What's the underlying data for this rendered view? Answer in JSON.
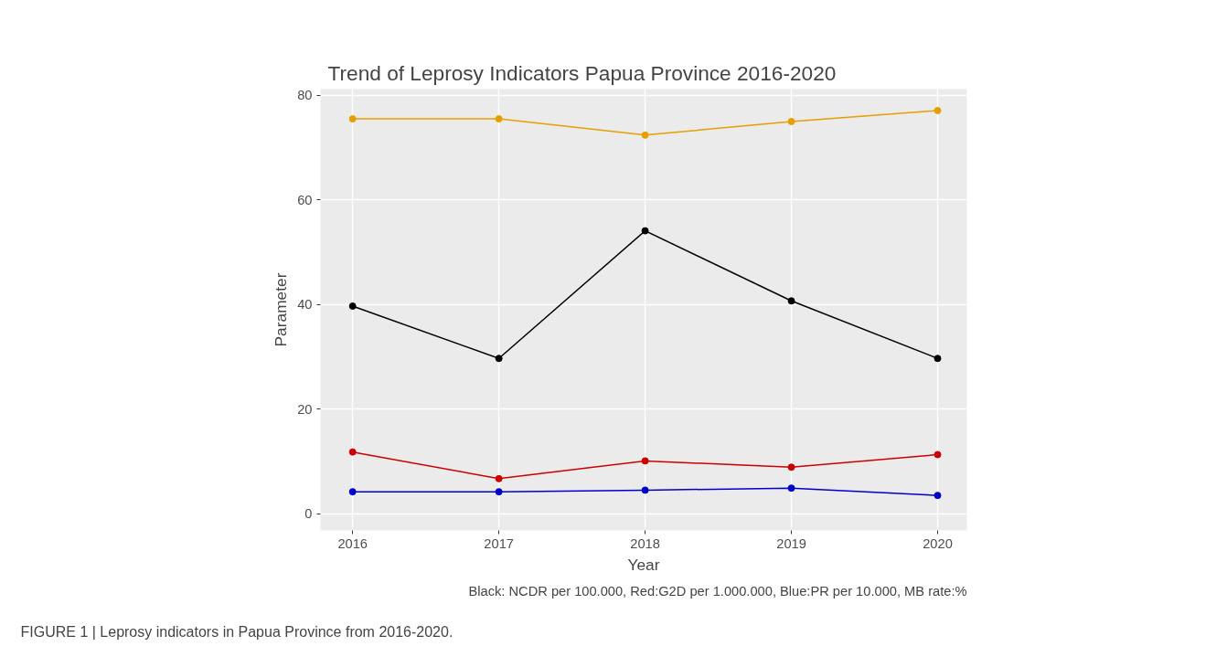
{
  "chart_data": {
    "type": "line",
    "title": "Trend of Leprosy Indicators Papua Province 2016-2020",
    "xlabel": "Year",
    "ylabel": "Parameter",
    "x": [
      2016,
      2017,
      2018,
      2019,
      2020
    ],
    "series": [
      {
        "color": "#e69f00",
        "values": [
          75.5,
          75.5,
          72.4,
          75.0,
          77.1
        ]
      },
      {
        "color": "#000000",
        "values": [
          39.7,
          29.7,
          54.1,
          40.7,
          29.7
        ]
      },
      {
        "color": "#cc0000",
        "values": [
          11.8,
          6.7,
          10.1,
          8.9,
          11.3
        ]
      },
      {
        "color": "#0000cc",
        "values": [
          4.2,
          4.2,
          4.5,
          4.9,
          3.5
        ]
      }
    ],
    "xlim": [
      2015.78,
      2020.2
    ],
    "xticks": [
      2016,
      2017,
      2018,
      2019,
      2020
    ],
    "ylim": [
      -3.2,
      81.2
    ],
    "yticks": [
      0,
      20,
      40,
      60,
      80
    ],
    "grid": true,
    "marker": "circle",
    "line_style": "solid",
    "annotations": [
      "Black: NCDR per 100.000, Red:G2D per 1.000.000, Blue:PR per 10.000, MB rate:%",
      "FIGURE 1 | Leprosy indicators in Papua Province from 2016-2020."
    ]
  }
}
